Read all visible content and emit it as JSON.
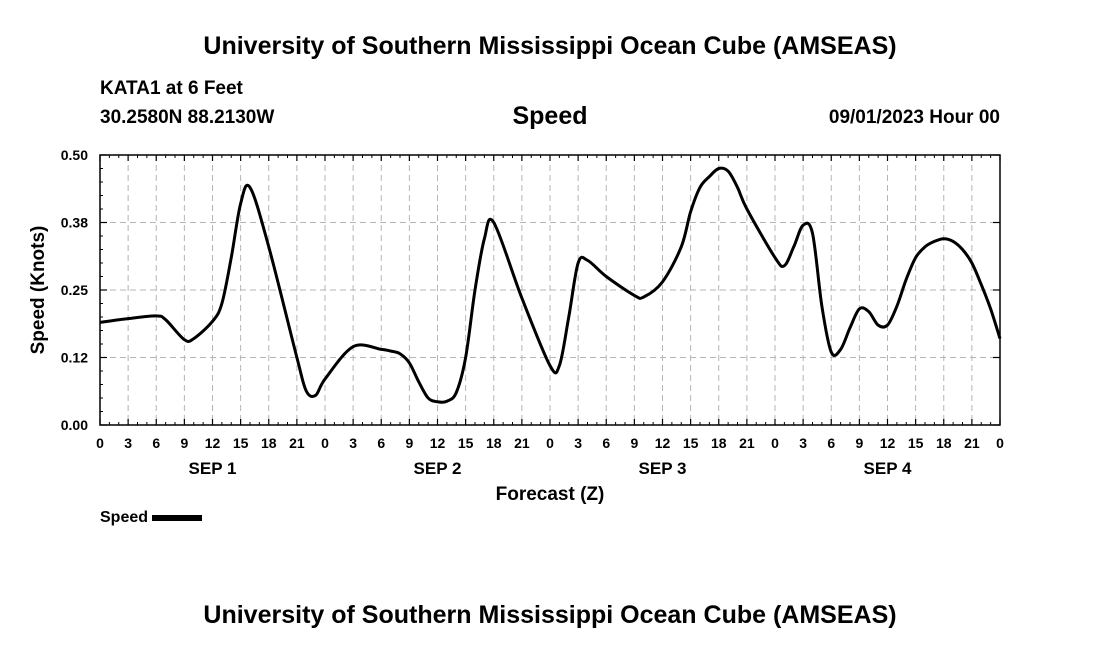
{
  "header": {
    "title": "University of Southern Mississippi Ocean Cube (AMSEAS)",
    "station": "KATA1 at 6 Feet",
    "coords": "30.2580N  88.2130W",
    "parameter": "Speed",
    "date": "09/01/2023 Hour 00"
  },
  "footer": {
    "title": "University of Southern Mississippi Ocean Cube (AMSEAS)"
  },
  "legend": {
    "label": "Speed",
    "color": "#000000"
  },
  "chart_data": {
    "type": "line",
    "title": "Speed",
    "xlabel": "Forecast (Z)",
    "ylabel": "Speed (Knots)",
    "xlim": [
      0,
      96
    ],
    "ylim": [
      0,
      0.5
    ],
    "grid": true,
    "yticks": [
      {
        "value": 0,
        "label": "0.00"
      },
      {
        "value": 0.125,
        "label": "0.12"
      },
      {
        "value": 0.25,
        "label": "0.25"
      },
      {
        "value": 0.375,
        "label": "0.38"
      },
      {
        "value": 0.5,
        "label": "0.50"
      }
    ],
    "xticks": [
      {
        "x": 0,
        "label": "0"
      },
      {
        "x": 3,
        "label": "3"
      },
      {
        "x": 6,
        "label": "6"
      },
      {
        "x": 9,
        "label": "9"
      },
      {
        "x": 12,
        "label": "12"
      },
      {
        "x": 15,
        "label": "15"
      },
      {
        "x": 18,
        "label": "18"
      },
      {
        "x": 21,
        "label": "21"
      },
      {
        "x": 24,
        "label": "0"
      },
      {
        "x": 27,
        "label": "3"
      },
      {
        "x": 30,
        "label": "6"
      },
      {
        "x": 33,
        "label": "9"
      },
      {
        "x": 36,
        "label": "12"
      },
      {
        "x": 39,
        "label": "15"
      },
      {
        "x": 42,
        "label": "18"
      },
      {
        "x": 45,
        "label": "21"
      },
      {
        "x": 48,
        "label": "0"
      },
      {
        "x": 51,
        "label": "3"
      },
      {
        "x": 54,
        "label": "6"
      },
      {
        "x": 57,
        "label": "9"
      },
      {
        "x": 60,
        "label": "12"
      },
      {
        "x": 63,
        "label": "15"
      },
      {
        "x": 66,
        "label": "18"
      },
      {
        "x": 69,
        "label": "21"
      },
      {
        "x": 72,
        "label": "0"
      },
      {
        "x": 75,
        "label": "3"
      },
      {
        "x": 78,
        "label": "6"
      },
      {
        "x": 81,
        "label": "9"
      },
      {
        "x": 84,
        "label": "12"
      },
      {
        "x": 87,
        "label": "15"
      },
      {
        "x": 90,
        "label": "18"
      },
      {
        "x": 93,
        "label": "21"
      },
      {
        "x": 96,
        "label": "0"
      }
    ],
    "day_labels": [
      {
        "x": 12,
        "label": "SEP 1"
      },
      {
        "x": 36,
        "label": "SEP 2"
      },
      {
        "x": 60,
        "label": "SEP 3"
      },
      {
        "x": 84,
        "label": "SEP 4"
      }
    ],
    "series": [
      {
        "name": "Speed",
        "x": [
          0,
          3,
          6,
          7,
          9,
          10,
          12,
          13,
          14,
          15,
          16,
          18,
          21,
          22,
          23,
          24,
          27,
          30,
          31,
          32,
          33,
          34,
          35,
          36,
          37,
          38,
          39,
          40,
          41,
          42,
          45,
          48,
          49,
          50,
          51,
          52,
          54,
          57,
          58,
          60,
          62,
          63,
          64,
          65,
          66,
          67,
          68,
          69,
          72,
          73,
          74,
          75,
          76,
          77,
          78,
          79,
          80,
          81,
          82,
          83,
          84,
          85,
          86,
          87,
          88,
          89,
          90,
          91,
          92,
          93,
          94,
          95,
          96
        ],
        "values": [
          0.19,
          0.197,
          0.202,
          0.195,
          0.158,
          0.16,
          0.192,
          0.225,
          0.31,
          0.41,
          0.44,
          0.33,
          0.125,
          0.063,
          0.055,
          0.085,
          0.145,
          0.14,
          0.137,
          0.132,
          0.115,
          0.08,
          0.05,
          0.043,
          0.044,
          0.06,
          0.125,
          0.25,
          0.345,
          0.375,
          0.235,
          0.11,
          0.11,
          0.2,
          0.3,
          0.305,
          0.275,
          0.24,
          0.237,
          0.265,
          0.33,
          0.395,
          0.44,
          0.46,
          0.475,
          0.47,
          0.44,
          0.4,
          0.31,
          0.295,
          0.33,
          0.37,
          0.355,
          0.22,
          0.135,
          0.14,
          0.18,
          0.215,
          0.21,
          0.185,
          0.185,
          0.22,
          0.27,
          0.31,
          0.33,
          0.34,
          0.345,
          0.34,
          0.325,
          0.3,
          0.26,
          0.215,
          0.16
        ]
      }
    ]
  }
}
